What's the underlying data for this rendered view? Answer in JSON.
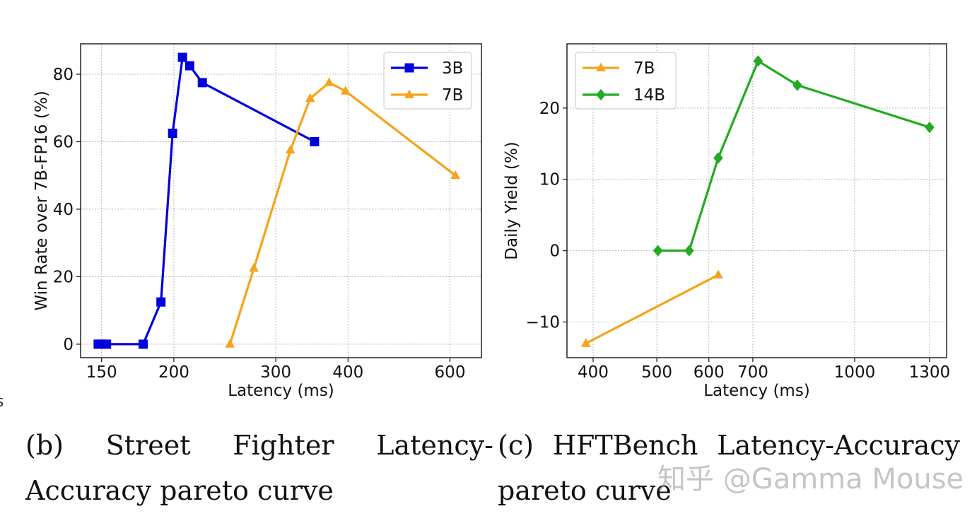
{
  "chart_data": [
    {
      "type": "line",
      "xlabel": "Latency (ms)",
      "ylabel": "Win Rate over 7B-FP16 (%)",
      "xscale": "log",
      "xlim": [
        138,
        680
      ],
      "ylim": [
        -4,
        89
      ],
      "xticks": [
        150,
        200,
        300,
        400,
        600
      ],
      "yticks": [
        0,
        20,
        40,
        60,
        80
      ],
      "grid": true,
      "legend": "top-right",
      "series": [
        {
          "name": "3B",
          "color": "#0000dd",
          "marker": "square",
          "x": [
            148,
            150,
            153,
            177,
            190,
            199,
            207,
            213,
            224,
            350
          ],
          "y": [
            0,
            0,
            0,
            0,
            12.5,
            62.5,
            85,
            82.5,
            77.5,
            60
          ]
        },
        {
          "name": "7B",
          "color": "#f5a31a",
          "marker": "triangle",
          "x": [
            250,
            275,
            318,
            344,
            371,
            396,
            613
          ],
          "y": [
            0,
            22.5,
            57.5,
            72.8,
            77.5,
            75,
            50
          ]
        }
      ]
    },
    {
      "type": "line",
      "xlabel": "Latency (ms)",
      "ylabel": "Daily Yield (%)",
      "xscale": "log",
      "xlim": [
        365,
        1380
      ],
      "ylim": [
        -15,
        29
      ],
      "xticks": [
        400,
        500,
        600,
        700,
        1000,
        1300
      ],
      "yticks": [
        -10,
        0,
        10,
        20
      ],
      "grid": true,
      "legend": "top-left",
      "series": [
        {
          "name": "7B",
          "color": "#f5a31a",
          "marker": "triangle",
          "x": [
            390,
            620
          ],
          "y": [
            -13,
            -3.4
          ]
        },
        {
          "name": "14B",
          "color": "#22aa22",
          "marker": "diamond",
          "x": [
            502,
            560,
            620,
            713,
            818,
            1300
          ],
          "y": [
            0,
            0,
            13,
            26.6,
            23.2,
            17.3
          ]
        }
      ]
    }
  ],
  "captions": {
    "b": {
      "label": "(b)",
      "line1": [
        "Street",
        "Fighter",
        "Latency-"
      ],
      "line2": "Accuracy pareto curve"
    },
    "c": {
      "label": "(c)",
      "line1": [
        "HFTBench",
        "Latency-Accuracy"
      ],
      "line2": "pareto curve"
    }
  },
  "watermark": "知乎 @Gamma Mouse",
  "stray_text": "s"
}
